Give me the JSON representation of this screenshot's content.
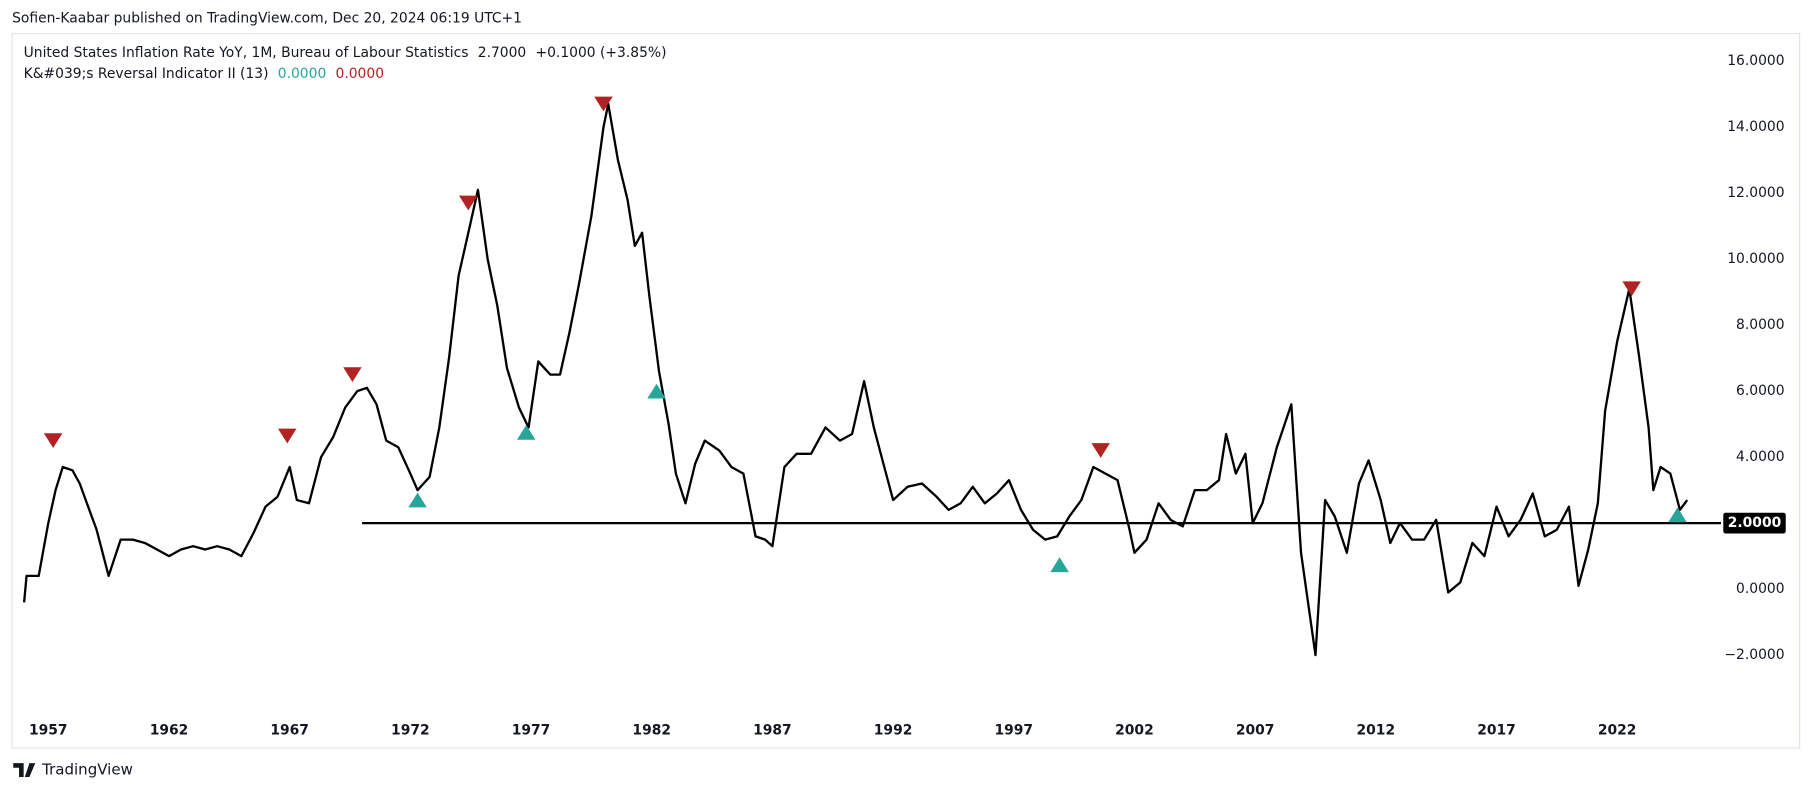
{
  "header": {
    "attribution": "Sofien-Kaabar published on TradingView.com, Dec 20, 2024 06:19 UTC+1",
    "brand": "TradingView"
  },
  "chart_data": {
    "type": "line",
    "legend": {
      "last_value": "2.7000",
      "change": "+0.1000 (+3.85%)"
    },
    "indicator": {
      "name": "K&#039;s Reversal Indicator II (13)",
      "values": [
        {
          "label": "0.0000",
          "color": "#26a69a"
        },
        {
          "label": "0.0000",
          "color": "#b22222"
        }
      ]
    },
    "series": [
      {
        "name": "United States Inflation Rate YoY, 1M, Bureau of Labour Statistics",
        "color": "#000000",
        "x": [
          1956.0,
          1956.1,
          1956.6,
          1957.0,
          1957.3,
          1957.6,
          1958.0,
          1958.3,
          1958.6,
          1959.0,
          1959.5,
          1960.0,
          1960.5,
          1961.0,
          1961.5,
          1962.0,
          1962.5,
          1963.0,
          1963.5,
          1964.0,
          1964.5,
          1965.0,
          1965.5,
          1966.0,
          1966.5,
          1967.0,
          1967.3,
          1967.8,
          1968.3,
          1968.8,
          1969.3,
          1969.8,
          1970.2,
          1970.6,
          1971.0,
          1971.5,
          1972.0,
          1972.3,
          1972.8,
          1973.2,
          1973.6,
          1974.0,
          1974.4,
          1974.8,
          1975.2,
          1975.6,
          1976.0,
          1976.5,
          1976.9,
          1977.3,
          1977.8,
          1978.2,
          1978.6,
          1979.0,
          1979.5,
          1980.0,
          1980.2,
          1980.6,
          1981.0,
          1981.3,
          1981.6,
          1981.9,
          1982.3,
          1982.7,
          1983.0,
          1983.4,
          1983.8,
          1984.2,
          1984.8,
          1985.3,
          1985.8,
          1986.3,
          1986.7,
          1987.0,
          1987.5,
          1988.0,
          1988.6,
          1989.2,
          1989.8,
          1990.3,
          1990.8,
          1991.2,
          1991.6,
          1992.0,
          1992.6,
          1993.2,
          1993.8,
          1994.3,
          1994.8,
          1995.3,
          1995.8,
          1996.3,
          1996.8,
          1997.3,
          1997.8,
          1998.3,
          1998.8,
          1999.3,
          1999.8,
          2000.3,
          2000.8,
          2001.3,
          2001.8,
          2002.0,
          2002.5,
          2003.0,
          2003.5,
          2004.0,
          2004.5,
          2005.0,
          2005.5,
          2005.8,
          2006.2,
          2006.6,
          2006.9,
          2007.3,
          2007.9,
          2008.5,
          2008.9,
          2009.5,
          2009.9,
          2010.3,
          2010.8,
          2011.3,
          2011.7,
          2012.2,
          2012.6,
          2013.0,
          2013.5,
          2014.0,
          2014.5,
          2015.0,
          2015.5,
          2016.0,
          2016.5,
          2017.0,
          2017.5,
          2018.0,
          2018.5,
          2019.0,
          2019.5,
          2020.0,
          2020.4,
          2020.8,
          2021.2,
          2021.5,
          2022.0,
          2022.5,
          2022.9,
          2023.3,
          2023.5,
          2023.8,
          2024.2,
          2024.6,
          2024.9
        ],
        "values": [
          -0.4,
          0.4,
          0.4,
          2.0,
          3.0,
          3.7,
          3.6,
          3.2,
          2.6,
          1.8,
          0.4,
          1.5,
          1.5,
          1.4,
          1.2,
          1.0,
          1.2,
          1.3,
          1.2,
          1.3,
          1.2,
          1.0,
          1.7,
          2.5,
          2.8,
          3.7,
          2.7,
          2.6,
          4.0,
          4.6,
          5.5,
          6.0,
          6.1,
          5.6,
          4.5,
          4.3,
          3.5,
          3.0,
          3.4,
          4.9,
          7.0,
          9.5,
          10.8,
          12.1,
          10.0,
          8.6,
          6.7,
          5.5,
          4.9,
          6.9,
          6.5,
          6.5,
          7.8,
          9.3,
          11.3,
          14.0,
          14.7,
          13.0,
          11.8,
          10.4,
          10.8,
          8.9,
          6.6,
          5.0,
          3.5,
          2.6,
          3.8,
          4.5,
          4.2,
          3.7,
          3.5,
          1.6,
          1.5,
          1.3,
          3.7,
          4.1,
          4.1,
          4.9,
          4.5,
          4.7,
          6.3,
          4.9,
          3.8,
          2.7,
          3.1,
          3.2,
          2.8,
          2.4,
          2.6,
          3.1,
          2.6,
          2.9,
          3.3,
          2.4,
          1.8,
          1.5,
          1.6,
          2.2,
          2.7,
          3.7,
          3.5,
          3.3,
          1.8,
          1.1,
          1.5,
          2.6,
          2.1,
          1.9,
          3.0,
          3.0,
          3.3,
          4.7,
          3.5,
          4.1,
          2.0,
          2.6,
          4.3,
          5.6,
          1.1,
          -2.0,
          2.7,
          2.2,
          1.1,
          3.2,
          3.9,
          2.7,
          1.4,
          2.0,
          1.5,
          1.5,
          2.1,
          -0.1,
          0.2,
          1.4,
          1.0,
          2.5,
          1.6,
          2.1,
          2.9,
          1.6,
          1.8,
          2.5,
          0.1,
          1.2,
          2.6,
          5.4,
          7.5,
          9.1,
          7.1,
          4.9,
          3.0,
          3.7,
          3.5,
          2.4,
          2.7
        ]
      }
    ],
    "markers": [
      {
        "shape": "down",
        "color": "#b22222",
        "x": [
          1957.2,
          1966.9,
          1969.6,
          1974.4,
          1980.0,
          2000.6,
          2022.6
        ],
        "values": [
          4.5,
          4.64,
          6.5,
          11.7,
          14.7,
          4.2,
          9.1
        ]
      },
      {
        "shape": "up",
        "color": "#26a69a",
        "x": [
          1972.3,
          1976.8,
          1982.2,
          1998.9,
          2024.5
        ],
        "values": [
          2.7,
          4.75,
          6.0,
          0.74,
          2.25
        ]
      }
    ],
    "hline": {
      "value": 2,
      "label": "2.0000",
      "x_start": 1970.0
    },
    "xlim": [
      1955.5,
      2026.3
    ],
    "ylim": [
      -3.8,
      16.8
    ],
    "xticks": [
      1957,
      1962,
      1967,
      1972,
      1977,
      1982,
      1987,
      1992,
      1997,
      2002,
      2007,
      2012,
      2017,
      2022
    ],
    "yticks": [
      {
        "value": -2,
        "label": "−2.0000"
      },
      {
        "value": 0,
        "label": "0.0000"
      },
      {
        "value": 2,
        "label": "2.0000"
      },
      {
        "value": 4,
        "label": "4.0000"
      },
      {
        "value": 6,
        "label": "6.0000"
      },
      {
        "value": 8,
        "label": "8.0000"
      },
      {
        "value": 10,
        "label": "10.0000"
      },
      {
        "value": 12,
        "label": "12.0000"
      },
      {
        "value": 14,
        "label": "14.0000"
      },
      {
        "value": 16,
        "label": "16.0000"
      }
    ]
  }
}
